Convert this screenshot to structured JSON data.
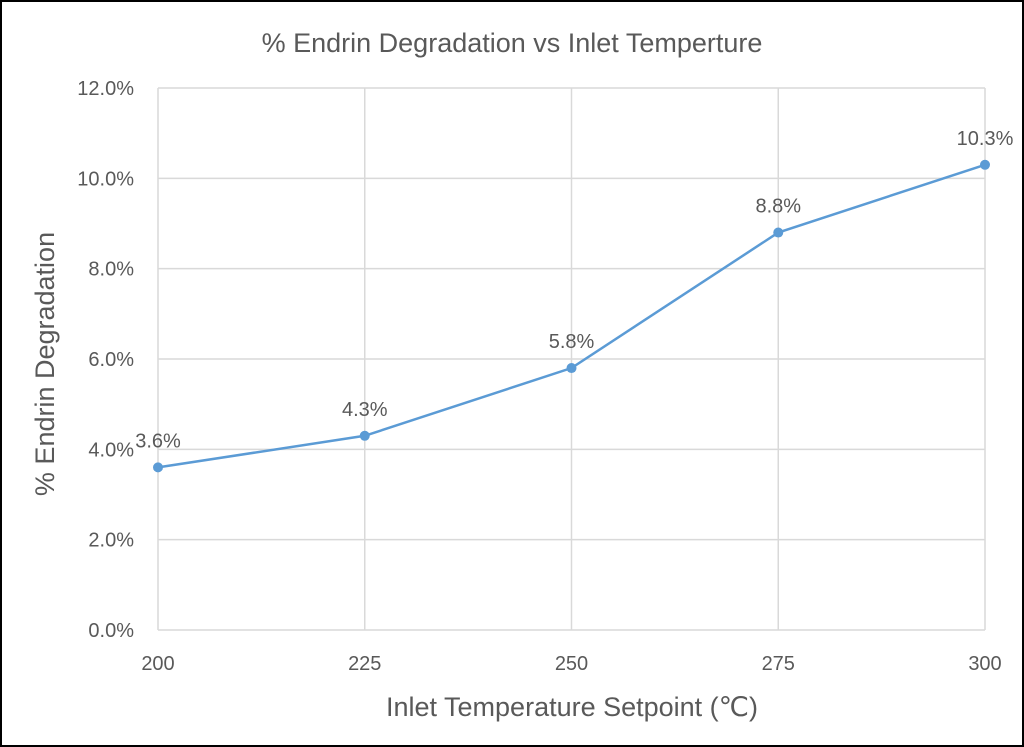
{
  "chart_data": {
    "type": "line",
    "title": "% Endrin Degradation vs Inlet Temperture",
    "xlabel": "Inlet Temperature Setpoint (℃)",
    "ylabel": "% Endrin Degradation",
    "x": [
      200,
      225,
      250,
      275,
      300
    ],
    "x_tick_labels": [
      "200",
      "225",
      "250",
      "275",
      "300"
    ],
    "y_tick_labels": [
      "0.0%",
      "2.0%",
      "4.0%",
      "6.0%",
      "8.0%",
      "10.0%",
      "12.0%"
    ],
    "xlim": [
      200,
      300
    ],
    "ylim": [
      0,
      12
    ],
    "y_unit": "percent",
    "grid": true,
    "series": [
      {
        "values": [
          3.6,
          4.3,
          5.8,
          8.8,
          10.3
        ],
        "data_labels": [
          "3.6%",
          "4.3%",
          "5.8%",
          "8.8%",
          "10.3%"
        ],
        "color": "#5B9BD5",
        "marker": "circle"
      }
    ]
  }
}
